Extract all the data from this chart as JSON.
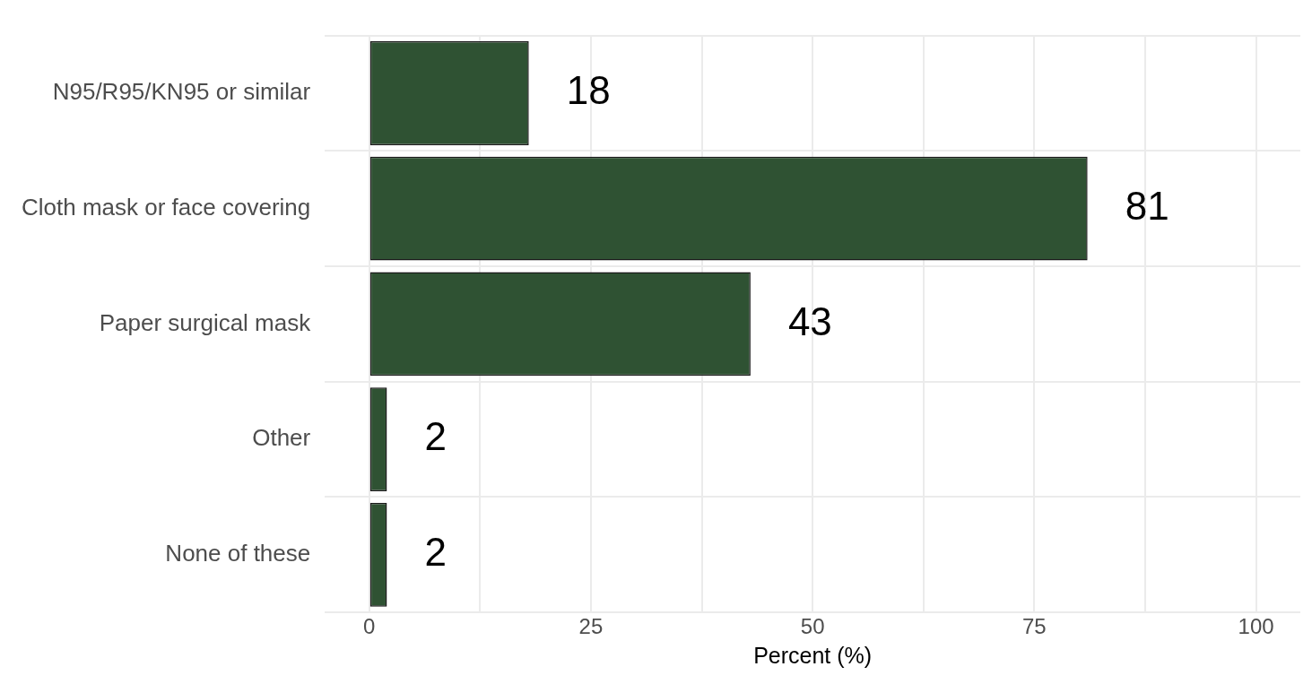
{
  "chart_data": {
    "type": "bar",
    "orientation": "horizontal",
    "xlabel": "Percent (%)",
    "categories": [
      "N95/R95/KN95 or similar",
      "Cloth mask or face covering",
      "Paper surgical mask",
      "Other",
      "None of these"
    ],
    "values": [
      18,
      81,
      43,
      2,
      2
    ],
    "color": "#2f5233",
    "xlim": [
      -5,
      105
    ],
    "xticks": [
      0,
      {
        "value": 12.5,
        "label": null
      },
      25,
      {
        "value": 37.5,
        "label": null
      },
      50,
      {
        "value": 62.5,
        "label": null
      },
      75,
      {
        "value": 87.5,
        "label": null
      },
      100
    ],
    "grid": true,
    "data_labels": true,
    "legend": false
  }
}
